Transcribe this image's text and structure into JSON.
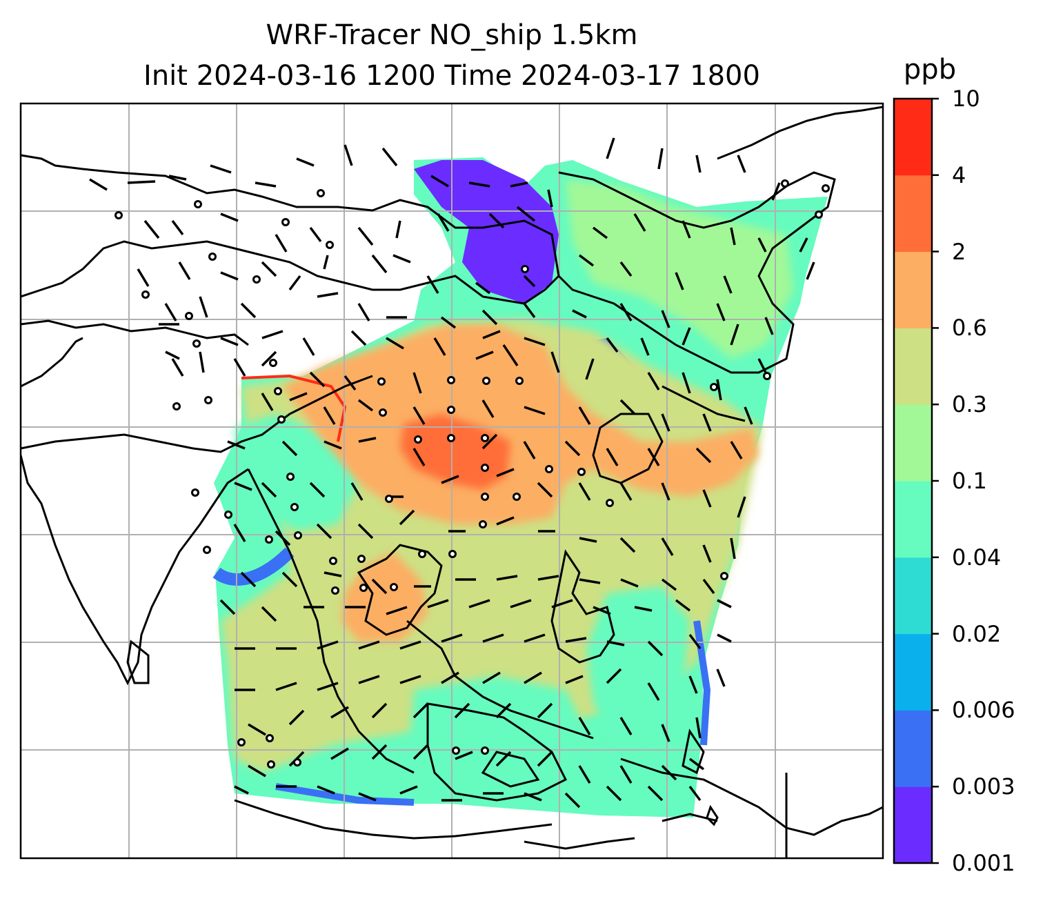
{
  "title": {
    "line1": "WRF-Tracer NO_ship 1.5km",
    "line2": "Init 2024-03-16 1200 Time 2024-03-17 1800"
  },
  "colorbar": {
    "unit": "ppb",
    "tick_labels": [
      "0.001",
      "0.003",
      "0.006",
      "0.02",
      "0.04",
      "0.1",
      "0.3",
      "0.6",
      "2",
      "4",
      "10"
    ],
    "colors": [
      "#6a2cff",
      "#3a70f4",
      "#0ab0eb",
      "#2edcd4",
      "#66fbbf",
      "#a2f897",
      "#cde084",
      "#fcae63",
      "#ff6e39",
      "#ff2b17"
    ]
  },
  "map": {
    "field": "NO_ship concentration",
    "region": "South and East Asia",
    "overlays": [
      "coastlines",
      "gridlines",
      "wind-barbs"
    ],
    "gridline_color": "#b0b0b0"
  }
}
